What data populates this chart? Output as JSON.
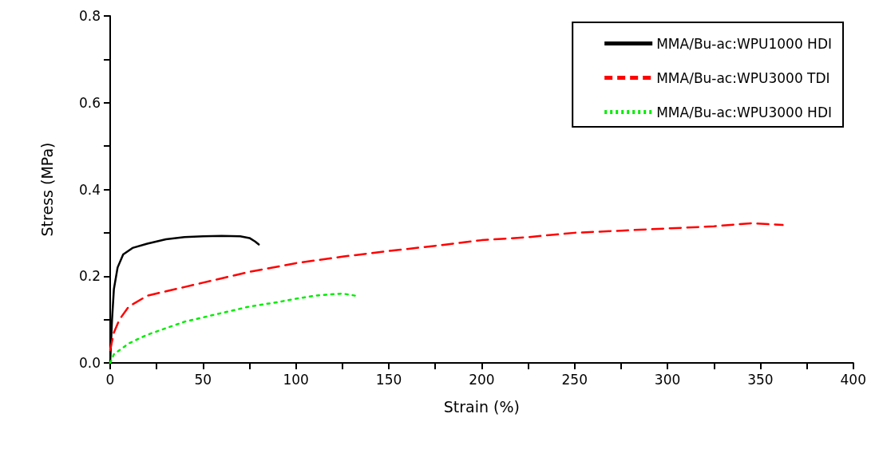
{
  "chart_data": {
    "type": "line",
    "xlabel": "Strain (%)",
    "ylabel": "Stress (MPa)",
    "xlim": [
      0,
      400
    ],
    "ylim": [
      0,
      0.8
    ],
    "xticks": [
      0,
      {
        "value": 25,
        "label": null
      },
      50,
      {
        "value": 75,
        "label": null
      },
      100,
      {
        "value": 125,
        "label": null
      },
      150,
      {
        "value": 175,
        "label": null
      },
      200,
      {
        "value": 225,
        "label": null
      },
      250,
      {
        "value": 275,
        "label": null
      },
      300,
      {
        "value": 325,
        "label": null
      },
      350,
      {
        "value": 375,
        "label": null
      },
      400
    ],
    "yticks": [
      "0.0",
      {
        "value": 0.1,
        "label": null
      },
      {
        "value": 0.2,
        "label": "0.2"
      },
      {
        "value": 0.3,
        "label": null
      },
      {
        "value": 0.4,
        "label": "0.4"
      },
      {
        "value": 0.5,
        "label": null
      },
      {
        "value": 0.6,
        "label": "0.6"
      },
      {
        "value": 0.7,
        "label": null
      },
      {
        "value": 0.8,
        "label": "0.8"
      }
    ],
    "grid": false,
    "legend": "top right",
    "marker": "none",
    "series": [
      {
        "name": "MMA/Bu-ac:WPU1000 HDI",
        "color": "#000000",
        "line_style": "solid",
        "x": [
          0,
          1,
          2,
          4,
          7,
          12,
          20,
          30,
          40,
          50,
          60,
          70,
          75,
          78,
          80
        ],
        "values": [
          0,
          0.1,
          0.17,
          0.22,
          0.25,
          0.265,
          0.275,
          0.285,
          0.29,
          0.292,
          0.293,
          0.292,
          0.288,
          0.28,
          0.273
        ]
      },
      {
        "name": "MMA/Bu-ac:WPU3000 TDI",
        "color": "#ff0000",
        "line_style": "dashed",
        "x": [
          0,
          2,
          5,
          10,
          20,
          30,
          40,
          50,
          60,
          75,
          100,
          125,
          150,
          175,
          200,
          225,
          250,
          275,
          300,
          325,
          345,
          362
        ],
        "values": [
          0.03,
          0.07,
          0.1,
          0.13,
          0.155,
          0.165,
          0.175,
          0.185,
          0.195,
          0.21,
          0.23,
          0.245,
          0.258,
          0.27,
          0.283,
          0.29,
          0.3,
          0.305,
          0.31,
          0.315,
          0.322,
          0.318
        ]
      },
      {
        "name": "MMA/Bu-ac:WPU3000 HDI",
        "color": "#00ee00",
        "line_style": "dotted",
        "x": [
          0,
          2,
          10,
          20,
          30,
          40,
          50,
          60,
          75,
          90,
          100,
          110,
          125,
          132
        ],
        "values": [
          0,
          0.02,
          0.045,
          0.065,
          0.08,
          0.095,
          0.105,
          0.115,
          0.13,
          0.14,
          0.148,
          0.155,
          0.16,
          0.155
        ]
      }
    ]
  }
}
